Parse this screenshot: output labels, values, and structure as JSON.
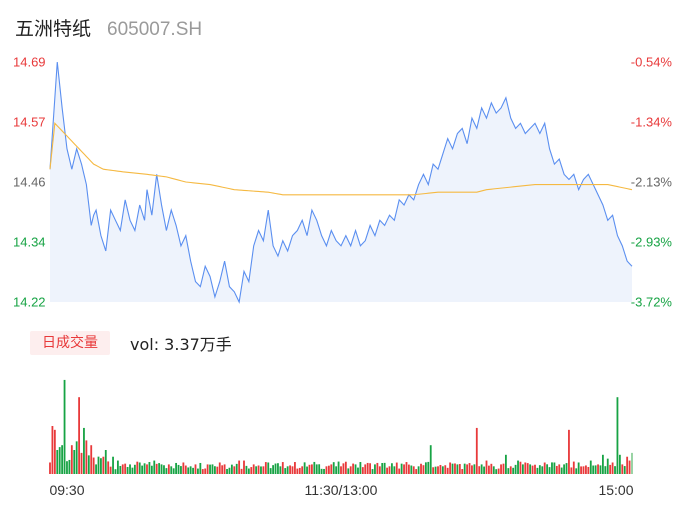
{
  "header": {
    "name": "五洲特纸",
    "code": "605007.SH"
  },
  "volume_panel": {
    "period_label": "日成交量",
    "vol_text": "vol: 3.37万手"
  },
  "colors": {
    "up": "#e8393a",
    "down": "#17a344",
    "price_line": "#5b8ff0",
    "avg_line": "#f5b942",
    "area_fill": "#eef3fc",
    "flat": "#8fd09c"
  },
  "chart_data": [
    {
      "type": "line",
      "ylim": [
        14.22,
        14.69
      ],
      "y_ticks_left": [
        "14.69",
        "14.57",
        "14.46",
        "14.34",
        "14.22"
      ],
      "y_ticks_right": [
        "-0.54%",
        "-1.34%",
        "-2.13%",
        "-2.93%",
        "-3.72%"
      ],
      "x_ticks": [
        "09:30",
        "11:30/13:00",
        "15:00"
      ],
      "n_points": 241,
      "series": [
        {
          "role": "price",
          "keyframes": [
            [
              0,
              14.48
            ],
            [
              2,
              14.62
            ],
            [
              3,
              14.69
            ],
            [
              5,
              14.6
            ],
            [
              7,
              14.52
            ],
            [
              9,
              14.48
            ],
            [
              11,
              14.52
            ],
            [
              13,
              14.49
            ],
            [
              15,
              14.45
            ],
            [
              17,
              14.37
            ],
            [
              18,
              14.39
            ],
            [
              19,
              14.4
            ],
            [
              21,
              14.35
            ],
            [
              23,
              14.32
            ],
            [
              25,
              14.4
            ],
            [
              27,
              14.38
            ],
            [
              29,
              14.36
            ],
            [
              31,
              14.42
            ],
            [
              33,
              14.38
            ],
            [
              35,
              14.36
            ],
            [
              37,
              14.41
            ],
            [
              39,
              14.38
            ],
            [
              40,
              14.44
            ],
            [
              42,
              14.39
            ],
            [
              44,
              14.47
            ],
            [
              46,
              14.41
            ],
            [
              48,
              14.36
            ],
            [
              50,
              14.4
            ],
            [
              52,
              14.37
            ],
            [
              54,
              14.33
            ],
            [
              56,
              14.35
            ],
            [
              58,
              14.3
            ],
            [
              60,
              14.26
            ],
            [
              62,
              14.25
            ],
            [
              64,
              14.29
            ],
            [
              66,
              14.27
            ],
            [
              68,
              14.23
            ],
            [
              70,
              14.26
            ],
            [
              72,
              14.3
            ],
            [
              74,
              14.25
            ],
            [
              76,
              14.24
            ],
            [
              78,
              14.22
            ],
            [
              80,
              14.28
            ],
            [
              82,
              14.26
            ],
            [
              84,
              14.33
            ],
            [
              86,
              14.36
            ],
            [
              88,
              14.34
            ],
            [
              90,
              14.4
            ],
            [
              92,
              14.33
            ],
            [
              94,
              14.31
            ],
            [
              96,
              14.34
            ],
            [
              98,
              14.32
            ],
            [
              100,
              14.35
            ],
            [
              102,
              14.36
            ],
            [
              104,
              14.38
            ],
            [
              106,
              14.35
            ],
            [
              108,
              14.4
            ],
            [
              110,
              14.38
            ],
            [
              112,
              14.35
            ],
            [
              114,
              14.33
            ],
            [
              116,
              14.36
            ],
            [
              118,
              14.34
            ],
            [
              120,
              14.33
            ],
            [
              122,
              14.35
            ],
            [
              124,
              14.33
            ],
            [
              126,
              14.36
            ],
            [
              128,
              14.33
            ],
            [
              130,
              14.34
            ],
            [
              132,
              14.37
            ],
            [
              134,
              14.35
            ],
            [
              136,
              14.38
            ],
            [
              138,
              14.37
            ],
            [
              140,
              14.39
            ],
            [
              142,
              14.38
            ],
            [
              144,
              14.42
            ],
            [
              146,
              14.41
            ],
            [
              148,
              14.43
            ],
            [
              150,
              14.42
            ],
            [
              152,
              14.45
            ],
            [
              154,
              14.47
            ],
            [
              156,
              14.45
            ],
            [
              158,
              14.49
            ],
            [
              160,
              14.48
            ],
            [
              162,
              14.51
            ],
            [
              164,
              14.54
            ],
            [
              166,
              14.52
            ],
            [
              168,
              14.55
            ],
            [
              170,
              14.56
            ],
            [
              172,
              14.53
            ],
            [
              174,
              14.58
            ],
            [
              176,
              14.56
            ],
            [
              178,
              14.6
            ],
            [
              180,
              14.58
            ],
            [
              182,
              14.61
            ],
            [
              184,
              14.59
            ],
            [
              186,
              14.6
            ],
            [
              188,
              14.62
            ],
            [
              190,
              14.58
            ],
            [
              192,
              14.56
            ],
            [
              194,
              14.57
            ],
            [
              196,
              14.55
            ],
            [
              198,
              14.56
            ],
            [
              200,
              14.57
            ],
            [
              202,
              14.55
            ],
            [
              204,
              14.57
            ],
            [
              206,
              14.52
            ],
            [
              208,
              14.49
            ],
            [
              210,
              14.5
            ],
            [
              212,
              14.47
            ],
            [
              214,
              14.46
            ],
            [
              216,
              14.47
            ],
            [
              218,
              14.44
            ],
            [
              220,
              14.46
            ],
            [
              222,
              14.47
            ],
            [
              224,
              14.45
            ],
            [
              226,
              14.43
            ],
            [
              228,
              14.41
            ],
            [
              230,
              14.38
            ],
            [
              232,
              14.39
            ],
            [
              234,
              14.35
            ],
            [
              236,
              14.33
            ],
            [
              238,
              14.3
            ],
            [
              240,
              14.29
            ]
          ]
        },
        {
          "role": "average",
          "keyframes": [
            [
              0,
              14.48
            ],
            [
              2,
              14.57
            ],
            [
              6,
              14.55
            ],
            [
              10,
              14.53
            ],
            [
              14,
              14.51
            ],
            [
              18,
              14.49
            ],
            [
              22,
              14.48
            ],
            [
              30,
              14.475
            ],
            [
              40,
              14.47
            ],
            [
              48,
              14.465
            ],
            [
              56,
              14.455
            ],
            [
              66,
              14.45
            ],
            [
              76,
              14.44
            ],
            [
              90,
              14.435
            ],
            [
              96,
              14.43
            ],
            [
              150,
              14.43
            ],
            [
              160,
              14.435
            ],
            [
              176,
              14.435
            ],
            [
              180,
              14.44
            ],
            [
              190,
              14.445
            ],
            [
              200,
              14.45
            ],
            [
              230,
              14.45
            ],
            [
              240,
              14.44
            ]
          ]
        }
      ]
    },
    {
      "type": "bar",
      "role": "volume",
      "max_value": 100,
      "values_up": [
        [
          1,
          50
        ],
        [
          2,
          46
        ],
        [
          9,
          30
        ],
        [
          12,
          80
        ],
        [
          13,
          22
        ],
        [
          15,
          35
        ],
        [
          17,
          30
        ],
        [
          22,
          18
        ],
        [
          30,
          10
        ],
        [
          40,
          10
        ],
        [
          49,
          10
        ],
        [
          55,
          12
        ],
        [
          60,
          10
        ],
        [
          65,
          10
        ],
        [
          70,
          12
        ],
        [
          72,
          10
        ],
        [
          76,
          8
        ],
        [
          78,
          14
        ],
        [
          80,
          14
        ],
        [
          84,
          10
        ],
        [
          88,
          8
        ],
        [
          100,
          8
        ],
        [
          104,
          8
        ],
        [
          108,
          10
        ],
        [
          114,
          8
        ],
        [
          116,
          10
        ],
        [
          120,
          8
        ],
        [
          124,
          8
        ],
        [
          130,
          10
        ],
        [
          136,
          8
        ],
        [
          140,
          8
        ],
        [
          146,
          10
        ],
        [
          150,
          8
        ],
        [
          160,
          8
        ],
        [
          165,
          12
        ],
        [
          172,
          10
        ],
        [
          176,
          48
        ],
        [
          180,
          14
        ],
        [
          186,
          10
        ],
        [
          190,
          8
        ],
        [
          196,
          12
        ],
        [
          210,
          10
        ],
        [
          214,
          46
        ],
        [
          220,
          8
        ],
        [
          226,
          10
        ],
        [
          232,
          12
        ],
        [
          236,
          10
        ],
        [
          238,
          18
        ],
        [
          239,
          14
        ]
      ],
      "values_down": [
        [
          3,
          25
        ],
        [
          4,
          28
        ],
        [
          5,
          30
        ],
        [
          6,
          98
        ],
        [
          10,
          25
        ],
        [
          11,
          34
        ],
        [
          14,
          48
        ],
        [
          19,
          10
        ],
        [
          23,
          25
        ],
        [
          26,
          18
        ],
        [
          28,
          14
        ],
        [
          33,
          10
        ],
        [
          37,
          12
        ],
        [
          43,
          14
        ],
        [
          46,
          10
        ],
        [
          50,
          8
        ],
        [
          58,
          8
        ],
        [
          67,
          10
        ],
        [
          85,
          8
        ],
        [
          90,
          12
        ],
        [
          95,
          8
        ],
        [
          98,
          8
        ],
        [
          110,
          10
        ],
        [
          118,
          8
        ],
        [
          126,
          10
        ],
        [
          134,
          10
        ],
        [
          142,
          8
        ],
        [
          152,
          8
        ],
        [
          157,
          30
        ],
        [
          162,
          8
        ],
        [
          168,
          10
        ],
        [
          178,
          10
        ],
        [
          183,
          8
        ],
        [
          188,
          20
        ],
        [
          193,
          14
        ],
        [
          198,
          10
        ],
        [
          203,
          8
        ],
        [
          208,
          12
        ],
        [
          212,
          10
        ],
        [
          218,
          12
        ],
        [
          223,
          14
        ],
        [
          228,
          20
        ],
        [
          230,
          16
        ],
        [
          234,
          80
        ],
        [
          235,
          20
        ]
      ],
      "flat": [
        [
          240,
          22
        ]
      ]
    }
  ]
}
